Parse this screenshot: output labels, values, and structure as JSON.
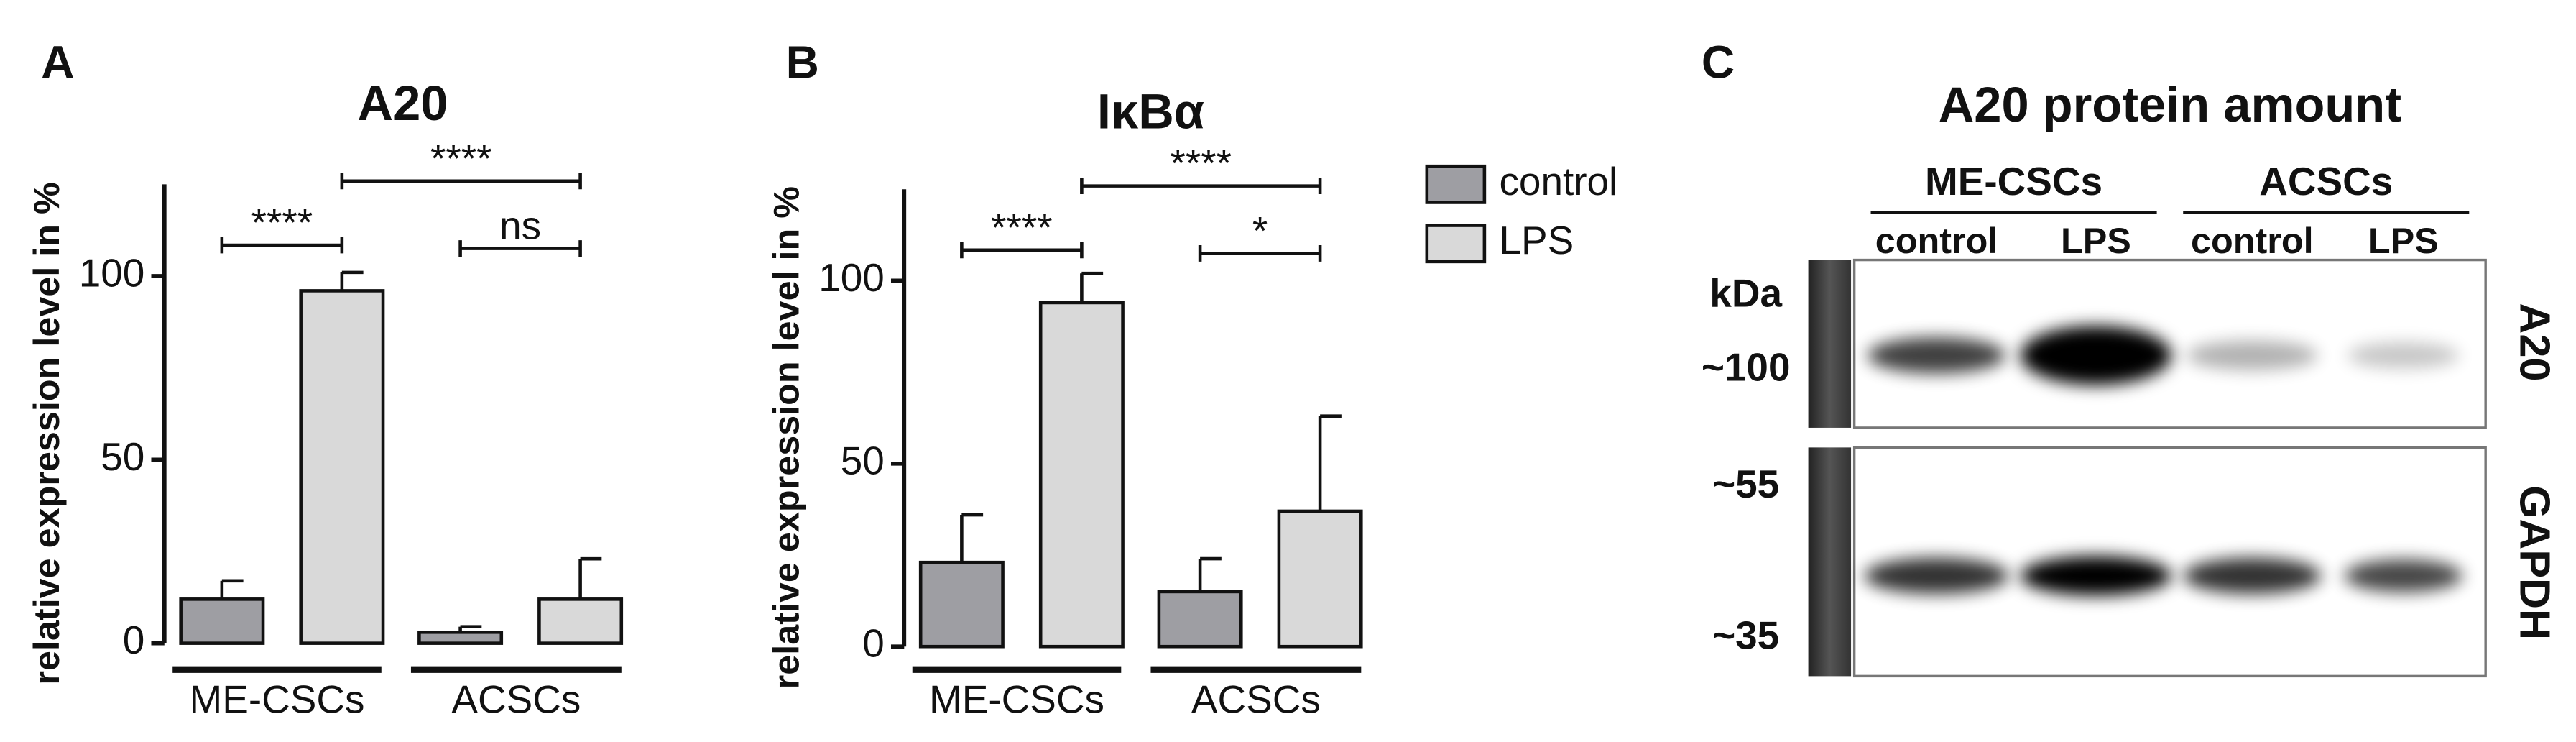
{
  "chart_data": [
    {
      "type": "bar",
      "panel": "A",
      "title": "A20",
      "ylabel": "relative expression level in %",
      "categories": [
        "ME-CSCs",
        "ACSCs"
      ],
      "series": [
        {
          "name": "control",
          "color": "#9e9ea3",
          "values": [
            12,
            3
          ],
          "errors": [
            5,
            1.5
          ]
        },
        {
          "name": "LPS",
          "color": "#d9d9d9",
          "values": [
            96,
            12
          ],
          "errors": [
            5,
            11
          ]
        }
      ],
      "ylim": [
        0,
        125
      ],
      "yticks": [
        0,
        50,
        100
      ],
      "legend": false,
      "annotations": [
        "****",
        "****",
        "ns"
      ]
    },
    {
      "type": "bar",
      "panel": "B",
      "title": "IκBα",
      "ylabel": "relative expression level in %",
      "categories": [
        "ME-CSCs",
        "ACSCs"
      ],
      "series": [
        {
          "name": "control",
          "color": "#9e9ea3",
          "values": [
            23,
            15
          ],
          "errors": [
            13,
            9
          ]
        },
        {
          "name": "LPS",
          "color": "#d9d9d9",
          "values": [
            94,
            37
          ],
          "errors": [
            8,
            26
          ]
        }
      ],
      "ylim": [
        0,
        125
      ],
      "yticks": [
        0,
        50,
        100
      ],
      "legend": true,
      "annotations": [
        "****",
        "****",
        "*"
      ]
    }
  ],
  "blot": {
    "panel": "C",
    "title": "A20 protein amount",
    "groups": [
      "ME-CSCs",
      "ACSCs"
    ],
    "lanes": [
      "control",
      "LPS",
      "control",
      "LPS"
    ],
    "unit": "kDa",
    "markers": [
      "~100",
      "~55",
      "~35"
    ],
    "rows": [
      "A20",
      "GAPDH"
    ]
  }
}
